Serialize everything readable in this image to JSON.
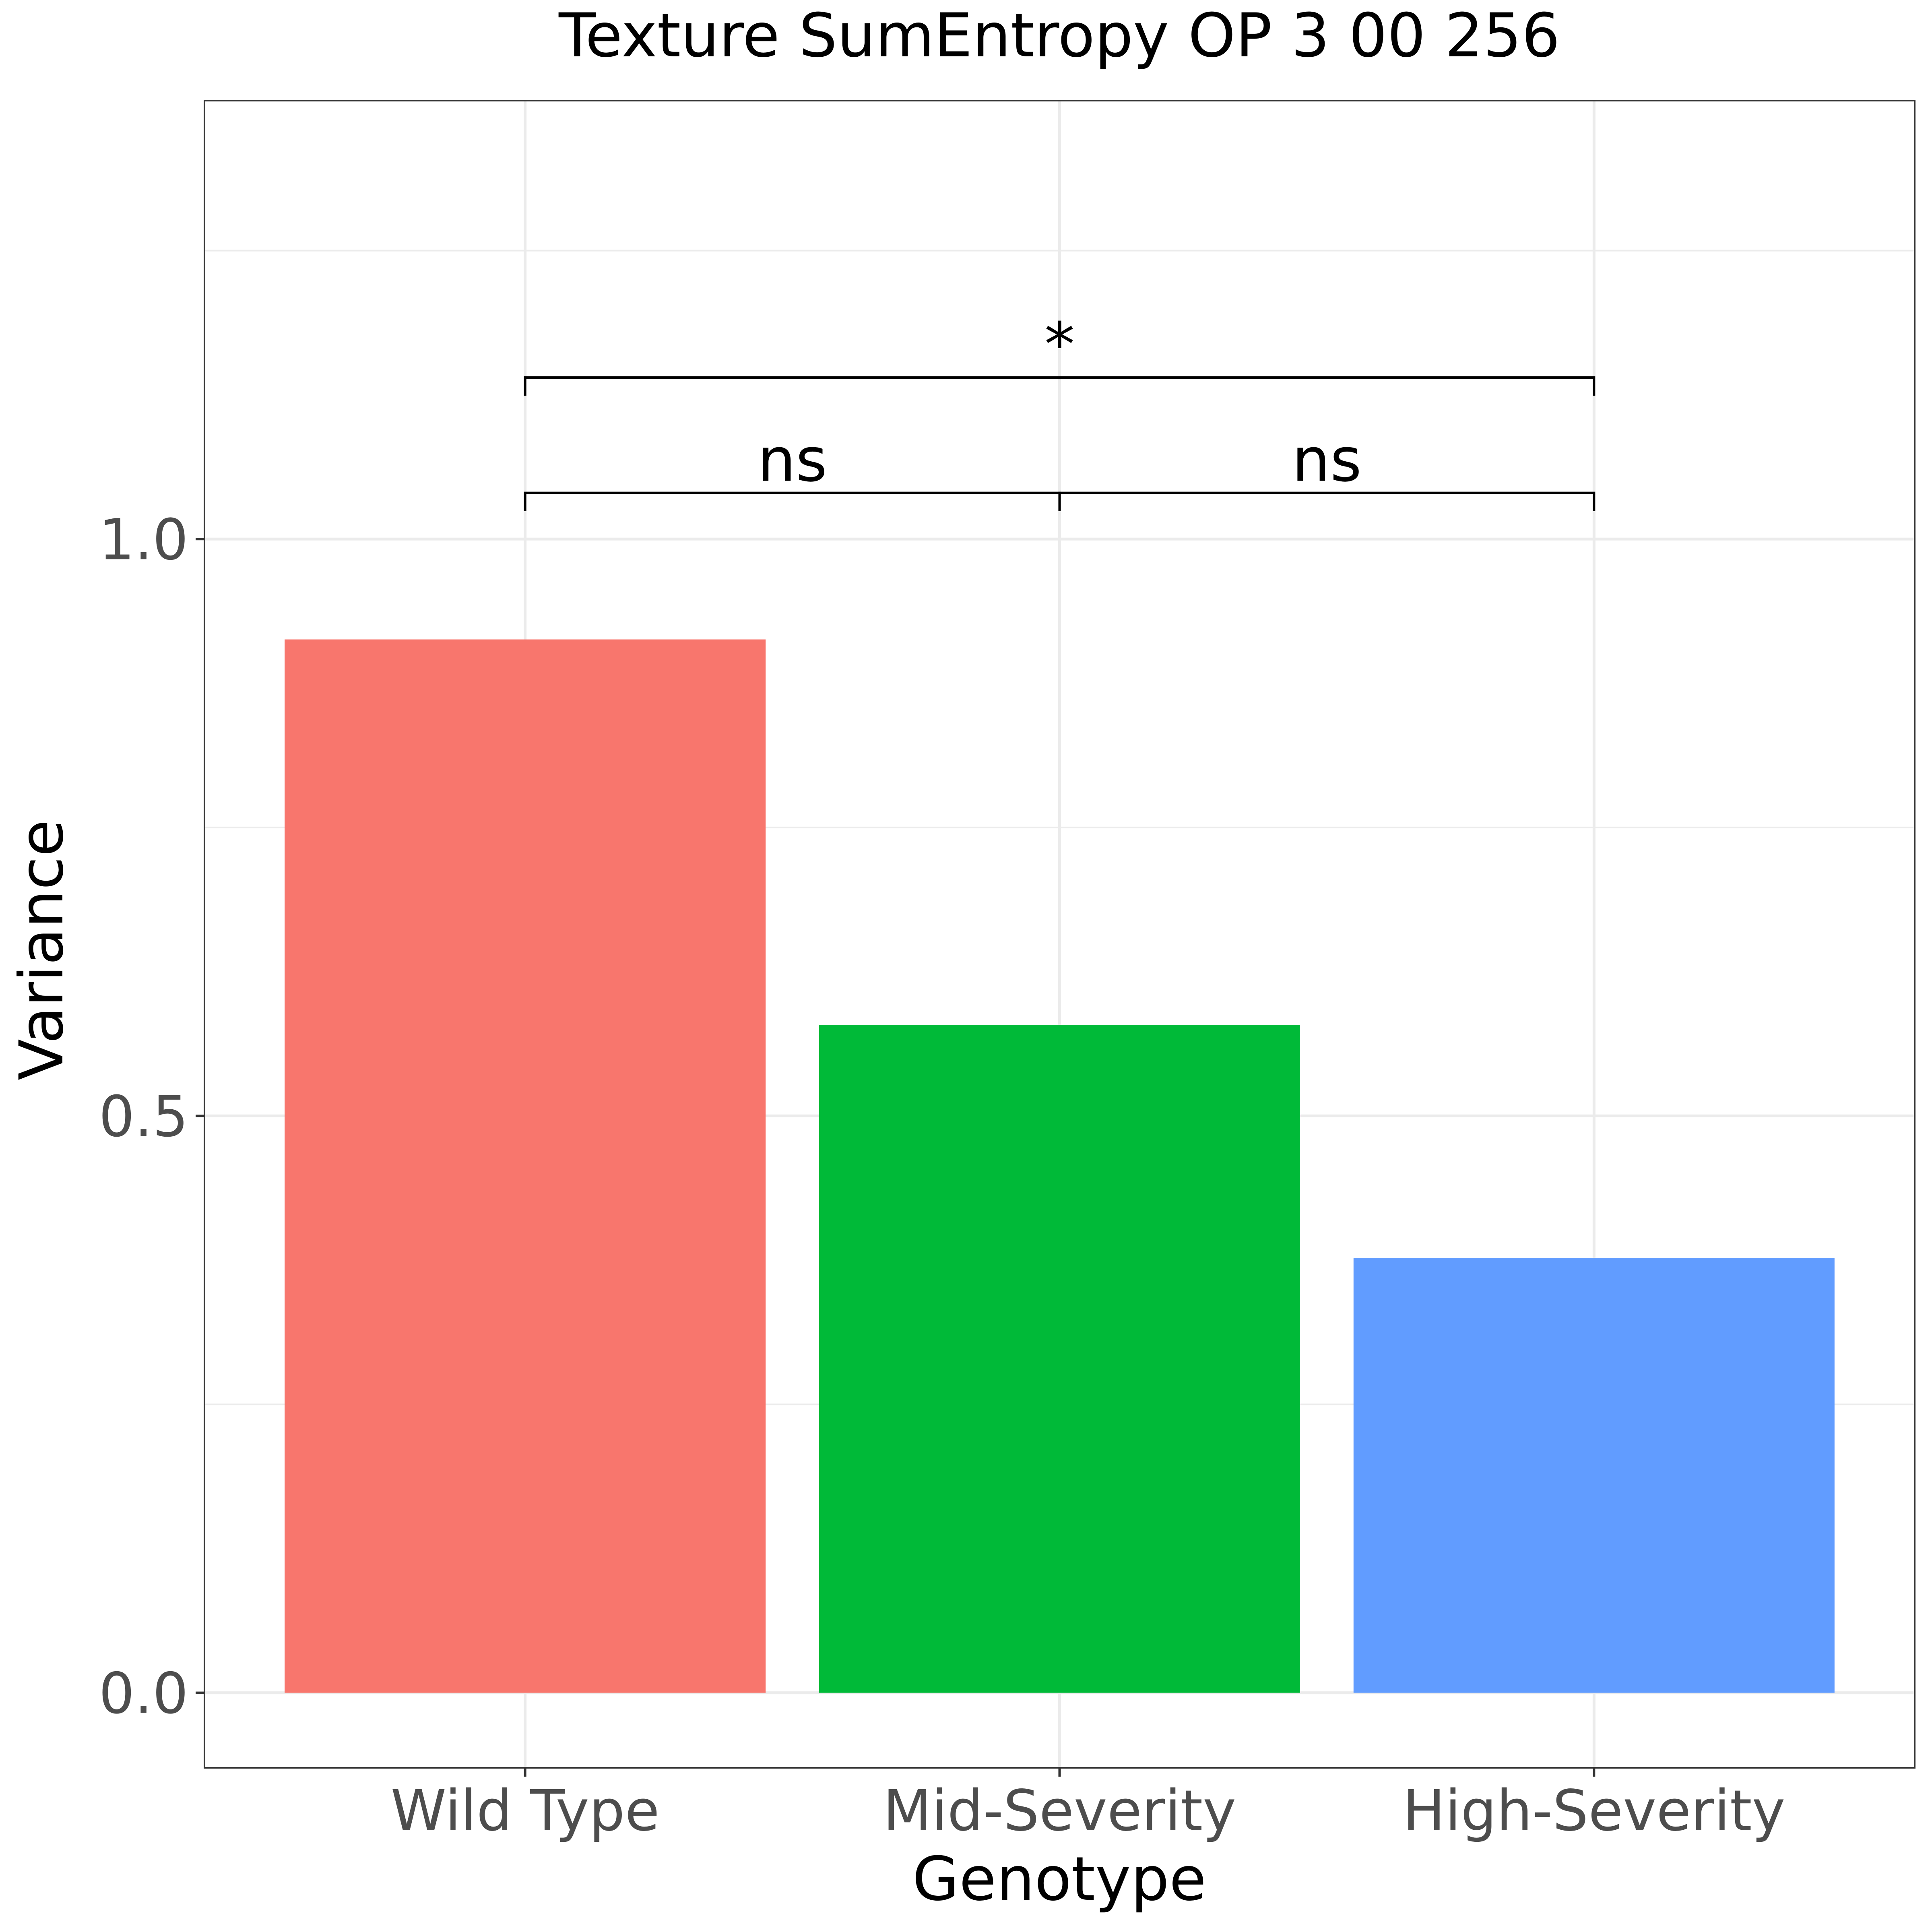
{
  "chart_data": {
    "type": "bar",
    "title": "Texture SumEntropy OP 3 00 256",
    "xlabel": "Genotype",
    "ylabel": "Variance",
    "categories": [
      "Wild Type",
      "Mid-Severity",
      "High-Severity"
    ],
    "values": [
      0.913,
      0.579,
      0.377
    ],
    "colors": [
      "#F8766D",
      "#00BA38",
      "#619CFF"
    ],
    "ylim": [
      -0.065,
      1.38
    ],
    "yticks": [
      0.0,
      0.5,
      1.0
    ],
    "ytick_labels": [
      "0.0",
      "0.5",
      "1.0"
    ],
    "grid": true,
    "legend": "none",
    "annotations": [
      {
        "label": "ns",
        "from": "Wild Type",
        "to": "Mid-Severity",
        "y": 1.04
      },
      {
        "label": "ns",
        "from": "Mid-Severity",
        "to": "High-Severity",
        "y": 1.04
      },
      {
        "label": "*",
        "from": "Wild Type",
        "to": "High-Severity",
        "y": 1.14
      }
    ]
  }
}
